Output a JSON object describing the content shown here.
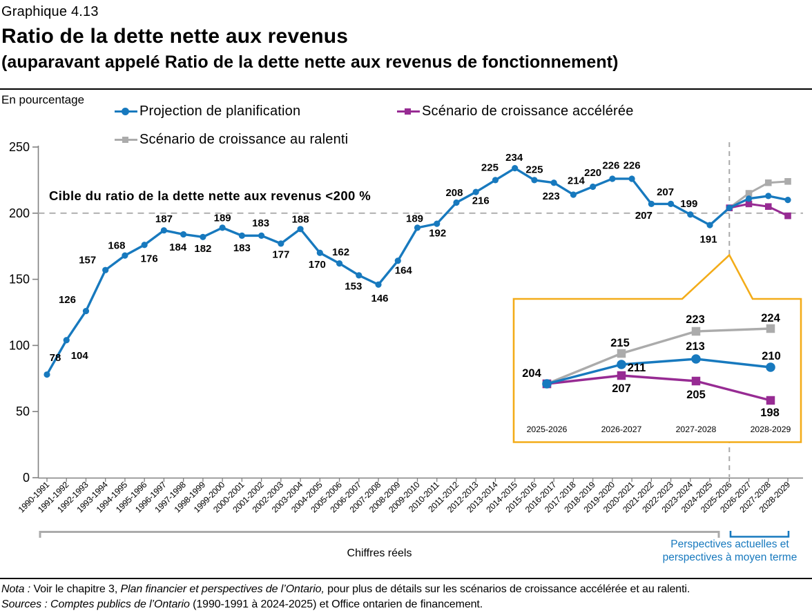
{
  "header": {
    "chart_number": "Graphique 4.13",
    "title": "Ratio de la dette nette aux revenus",
    "subtitle": "(auparavant appelé Ratio de la dette nette aux revenus de fonctionnement)"
  },
  "chart_data": {
    "type": "line",
    "title": "Ratio de la dette nette aux revenus",
    "ylabel": "En pourcentage",
    "ylim": [
      0,
      250
    ],
    "yticks": [
      0,
      50,
      100,
      150,
      200,
      250
    ],
    "grid": false,
    "legend_position": "top",
    "target_line": {
      "value": 200,
      "label": "Cible du ratio de la dette nette aux revenus <200 %"
    },
    "divider_index": 35,
    "categories": [
      "1990-1991",
      "1991-1992",
      "1992-1993",
      "1993-1994",
      "1994-1995",
      "1995-1996",
      "1996-1997",
      "1997-1998",
      "1998-1999",
      "1999-2000",
      "2000-2001",
      "2001-2002",
      "2002-2003",
      "2003-2004",
      "2004-2005",
      "2005-2006",
      "2006-2007",
      "2007-2008",
      "2008-2009",
      "2009-2010",
      "2010-2011",
      "2011-2012",
      "2012-2013",
      "2013-2014",
      "2014-2015",
      "2015-2016",
      "2016-2017",
      "2017-2018",
      "2018-2019",
      "2019-2020",
      "2020-2021",
      "2021-2022",
      "2022-2023",
      "2023-2024",
      "2024-2025",
      "2025-2026",
      "2026-2027",
      "2027-2028",
      "2028-2029"
    ],
    "series": [
      {
        "name": "Projection de planification",
        "color": "#1779be",
        "marker": "circle",
        "values": [
          78,
          104,
          126,
          157,
          168,
          176,
          187,
          184,
          182,
          189,
          183,
          183,
          177,
          188,
          170,
          162,
          153,
          146,
          164,
          189,
          192,
          208,
          216,
          225,
          234,
          225,
          223,
          214,
          220,
          226,
          226,
          207,
          207,
          199,
          191,
          204,
          211,
          213,
          210
        ],
        "label_offsets": [
          [
            12,
            -24
          ],
          [
            19,
            23
          ],
          [
            -27,
            -16
          ],
          [
            -26,
            -14
          ],
          [
            -12,
            -14
          ],
          [
            7,
            20
          ],
          [
            0,
            -16
          ],
          [
            -8,
            19
          ],
          [
            0,
            17
          ],
          [
            0,
            -14
          ],
          [
            0,
            18
          ],
          [
            -1,
            -18
          ],
          [
            0,
            16
          ],
          [
            0,
            -14
          ],
          [
            -4,
            17
          ],
          [
            2,
            -16
          ],
          [
            -8,
            16
          ],
          [
            2,
            20
          ],
          [
            8,
            14
          ],
          [
            -4,
            -13
          ],
          [
            1,
            14
          ],
          [
            -3,
            -14
          ],
          [
            7,
            13
          ],
          [
            -8,
            -18
          ],
          [
            -1,
            -15
          ],
          [
            0,
            -15
          ],
          [
            -4,
            20
          ],
          [
            4,
            -20
          ],
          [
            0,
            -20
          ],
          [
            -2,
            -19
          ],
          [
            0,
            -19
          ],
          [
            -11,
            17
          ],
          [
            -8,
            -17
          ],
          [
            -2,
            -15
          ],
          [
            -2,
            21
          ],
          null,
          null,
          null,
          null
        ]
      },
      {
        "name": "Scénario de croissance accélérée",
        "color": "#972b93",
        "marker": "square",
        "values": [
          null,
          null,
          null,
          null,
          null,
          null,
          null,
          null,
          null,
          null,
          null,
          null,
          null,
          null,
          null,
          null,
          null,
          null,
          null,
          null,
          null,
          null,
          null,
          null,
          null,
          null,
          null,
          null,
          null,
          null,
          null,
          null,
          null,
          null,
          null,
          204,
          207,
          205,
          198
        ],
        "label_offsets": null
      },
      {
        "name": "Scénario de croissance au ralenti",
        "color": "#ababab",
        "marker": "square",
        "values": [
          null,
          null,
          null,
          null,
          null,
          null,
          null,
          null,
          null,
          null,
          null,
          null,
          null,
          null,
          null,
          null,
          null,
          null,
          null,
          null,
          null,
          null,
          null,
          null,
          null,
          null,
          null,
          null,
          null,
          null,
          null,
          null,
          null,
          null,
          null,
          204,
          215,
          223,
          224
        ],
        "label_offsets": null
      }
    ],
    "inset": {
      "border_color": "#f3ac19",
      "categories": [
        "2025-2026",
        "2026-2027",
        "2027-2028",
        "2028-2029"
      ],
      "series": [
        {
          "name": "Projection de planification",
          "color": "#1779be",
          "marker": "circle",
          "values": [
            204,
            211,
            213,
            210
          ],
          "label_offsets": [
            [
              -22,
              -15
            ],
            [
              22,
              5
            ],
            [
              -1,
              -18
            ],
            [
              1,
              -16
            ]
          ]
        },
        {
          "name": "Scénario de croissance accélérée",
          "color": "#972b93",
          "marker": "square",
          "values": [
            204,
            207,
            205,
            198
          ],
          "label_offsets": [
            null,
            [
              0,
              19
            ],
            [
              0,
              20
            ],
            [
              -1,
              18
            ]
          ]
        },
        {
          "name": "Scénario de croissance au ralenti",
          "color": "#ababab",
          "marker": "square",
          "values": [
            204,
            215,
            223,
            224
          ],
          "label_offsets": [
            null,
            [
              -2,
              -15
            ],
            [
              -1,
              -17
            ],
            [
              0,
              -15
            ]
          ]
        }
      ]
    },
    "annotations": {
      "actual_label": "Chiffres réels",
      "outlook_line1": "Perspectives actuelles et",
      "outlook_line2": "perspectives à moyen terme",
      "outlook_color": "#1779be",
      "actual_bracket_color": "#ababab"
    }
  },
  "footnotes": {
    "nota_segments": [
      {
        "text": "Nota :",
        "italic": true
      },
      {
        "text": " Voir le chapitre 3, ",
        "italic": false
      },
      {
        "text": "Plan financier et perspectives de l’Ontario,",
        "italic": true
      },
      {
        "text": " pour plus de détails sur les scénarios de croissance accélérée et au ralenti.",
        "italic": false
      }
    ],
    "sources_segments": [
      {
        "text": "Sources : Comptes publics de l’Ontario",
        "italic": true
      },
      {
        "text": " (1990-1991 à 2024-2025) et Office ontarien de financement.",
        "italic": false
      }
    ]
  }
}
